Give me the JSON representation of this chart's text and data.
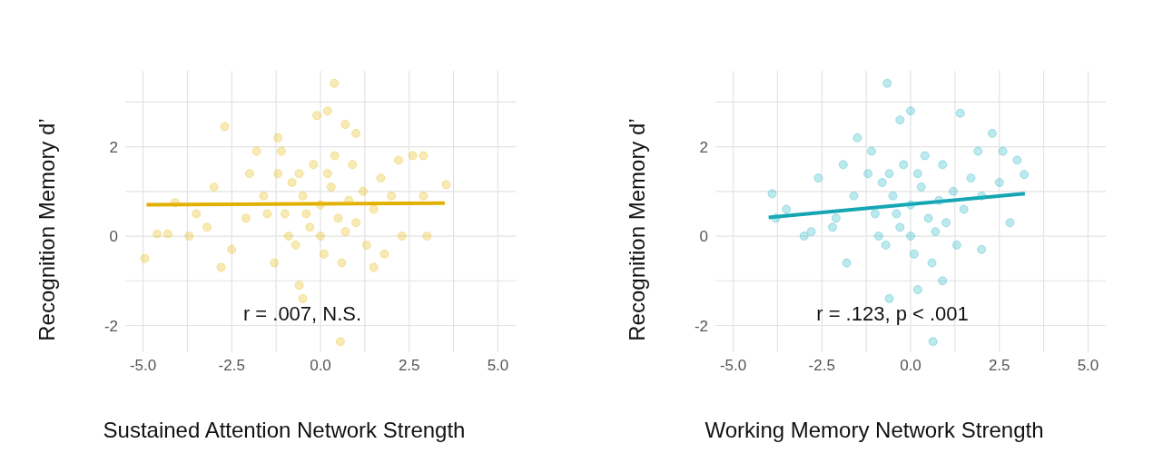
{
  "chart_data": [
    {
      "type": "scatter",
      "xlabel": "Sustained Attention Network Strength",
      "ylabel": "Recognition Memory d’",
      "xlim": [
        -5.5,
        5.5
      ],
      "ylim": [
        -2.6,
        3.7
      ],
      "xticks": [
        {
          "value": -5,
          "label": "-5.0"
        },
        {
          "value": -3.75,
          "label": null
        },
        {
          "value": -2.5,
          "label": "-2.5"
        },
        {
          "value": -1.25,
          "label": null
        },
        {
          "value": 0,
          "label": "0.0"
        },
        {
          "value": 1.25,
          "label": null
        },
        {
          "value": 2.5,
          "label": "2.5"
        },
        {
          "value": 3.75,
          "label": null
        },
        {
          "value": 5,
          "label": "5.0"
        }
      ],
      "yticks": [
        -2,
        {
          "value": -1,
          "label": null
        },
        0,
        {
          "value": 1,
          "label": null
        },
        2,
        {
          "value": 3,
          "label": null
        }
      ],
      "grid": true,
      "annotations": [
        "r = .007, N.S."
      ],
      "series": [
        {
          "marker": "circle",
          "color": "#e8b90c",
          "x": [
            0.39,
            0.56,
            -4.95,
            3.54,
            -2.7,
            2.6,
            -4.3,
            -4.1,
            -3.7,
            -3.2,
            -2.8,
            -2.5,
            -0.5,
            -0.6,
            0.2,
            -0.1,
            0.7,
            1.0,
            -1.2,
            -1.8,
            2.2,
            2.9,
            1.8,
            2.3,
            1.5,
            -1.3,
            -2.0,
            -3.0,
            2.9,
            -1.5,
            -1,
            -0.8,
            -0.5,
            -0.3,
            0,
            0.3,
            0.5,
            0.8,
            1.0,
            1.2,
            -1.2,
            -0.7,
            0.1,
            0.6,
            -0.2,
            0.4,
            -0.9,
            1.5,
            1.7,
            -1.6,
            -2.1,
            2.0,
            0.0,
            0.2,
            -0.4,
            0.9,
            -1.1,
            1.3,
            -0.6,
            0.7,
            -4.6,
            -3.5,
            3.0
          ],
          "values": [
            3.42,
            -2.36,
            -0.5,
            1.15,
            2.45,
            1.8,
            0.05,
            0.75,
            0.0,
            0.2,
            -0.7,
            -0.3,
            -1.4,
            -1.1,
            2.8,
            2.7,
            2.5,
            2.3,
            2.2,
            1.9,
            1.7,
            1.8,
            -0.4,
            0.0,
            -0.7,
            -0.6,
            1.4,
            1.1,
            0.9,
            0.5,
            0.5,
            1.2,
            0.9,
            0.2,
            0.7,
            1.1,
            0.4,
            0.8,
            0.3,
            1.0,
            1.4,
            -0.2,
            -0.4,
            -0.6,
            1.6,
            1.8,
            0.0,
            0.6,
            1.3,
            0.9,
            0.4,
            0.9,
            0.0,
            1.4,
            0.5,
            1.6,
            1.9,
            -0.2,
            1.4,
            0.1,
            0.05,
            0.5,
            0.0
          ]
        },
        {
          "type": "line",
          "marker": "none",
          "color": "#e2b100",
          "x": [
            -4.9,
            3.5
          ],
          "values": [
            0.7,
            0.74
          ]
        }
      ]
    },
    {
      "type": "scatter",
      "xlabel": "Working Memory Network Strength",
      "ylabel": "Recognition Memory d’",
      "xlim": [
        -5.5,
        5.5
      ],
      "ylim": [
        -2.6,
        3.7
      ],
      "xticks": [
        {
          "value": -5,
          "label": "-5.0"
        },
        {
          "value": -3.75,
          "label": null
        },
        {
          "value": -2.5,
          "label": "-2.5"
        },
        {
          "value": -1.25,
          "label": null
        },
        {
          "value": 0,
          "label": "0.0"
        },
        {
          "value": 1.25,
          "label": null
        },
        {
          "value": 2.5,
          "label": "2.5"
        },
        {
          "value": 3.75,
          "label": null
        },
        {
          "value": 5,
          "label": "5.0"
        }
      ],
      "yticks": [
        -2,
        {
          "value": -1,
          "label": null
        },
        0,
        {
          "value": 1,
          "label": null
        },
        2,
        {
          "value": 3,
          "label": null
        }
      ],
      "grid": true,
      "annotations": [
        "r = .123, p < .001"
      ],
      "series": [
        {
          "marker": "circle",
          "color": "#22b5c2",
          "x": [
            -0.66,
            0.63,
            -3.9,
            3.2,
            3.0,
            -3.5,
            -3.8,
            -3.0,
            -2.6,
            2.8,
            2.3,
            1.4,
            0.0,
            -0.3,
            -1.8,
            0.9,
            0.2,
            -0.6,
            2.5,
            -2.2,
            -1.5,
            1.9,
            2.0,
            -1,
            -0.8,
            -0.5,
            -0.3,
            0,
            0.3,
            0.5,
            0.8,
            1.0,
            1.2,
            -1.2,
            -0.7,
            0.1,
            0.6,
            -0.2,
            0.4,
            -0.9,
            1.5,
            1.7,
            -1.6,
            -2.1,
            2.0,
            0.0,
            0.2,
            -0.4,
            0.9,
            -1.1,
            1.3,
            -0.6,
            0.7,
            -2.8,
            2.6,
            -1.9
          ],
          "values": [
            3.42,
            -2.36,
            0.95,
            1.38,
            1.7,
            0.6,
            0.4,
            0.0,
            1.3,
            0.3,
            2.3,
            2.75,
            2.8,
            2.6,
            -0.6,
            -1.0,
            -1.2,
            -1.4,
            1.2,
            0.2,
            2.2,
            1.9,
            -0.3,
            0.5,
            1.2,
            0.9,
            0.2,
            0.7,
            1.1,
            0.4,
            0.8,
            0.3,
            1.0,
            1.4,
            -0.2,
            -0.4,
            -0.6,
            1.6,
            1.8,
            0.0,
            0.6,
            1.3,
            0.9,
            0.4,
            0.9,
            0.0,
            1.4,
            0.5,
            1.6,
            1.9,
            -0.2,
            1.4,
            0.1,
            0.1,
            1.9,
            1.6
          ]
        },
        {
          "type": "line",
          "marker": "none",
          "color": "#16a6b3",
          "x": [
            -4.0,
            3.22
          ],
          "values": [
            0.42,
            0.95
          ]
        }
      ]
    }
  ]
}
